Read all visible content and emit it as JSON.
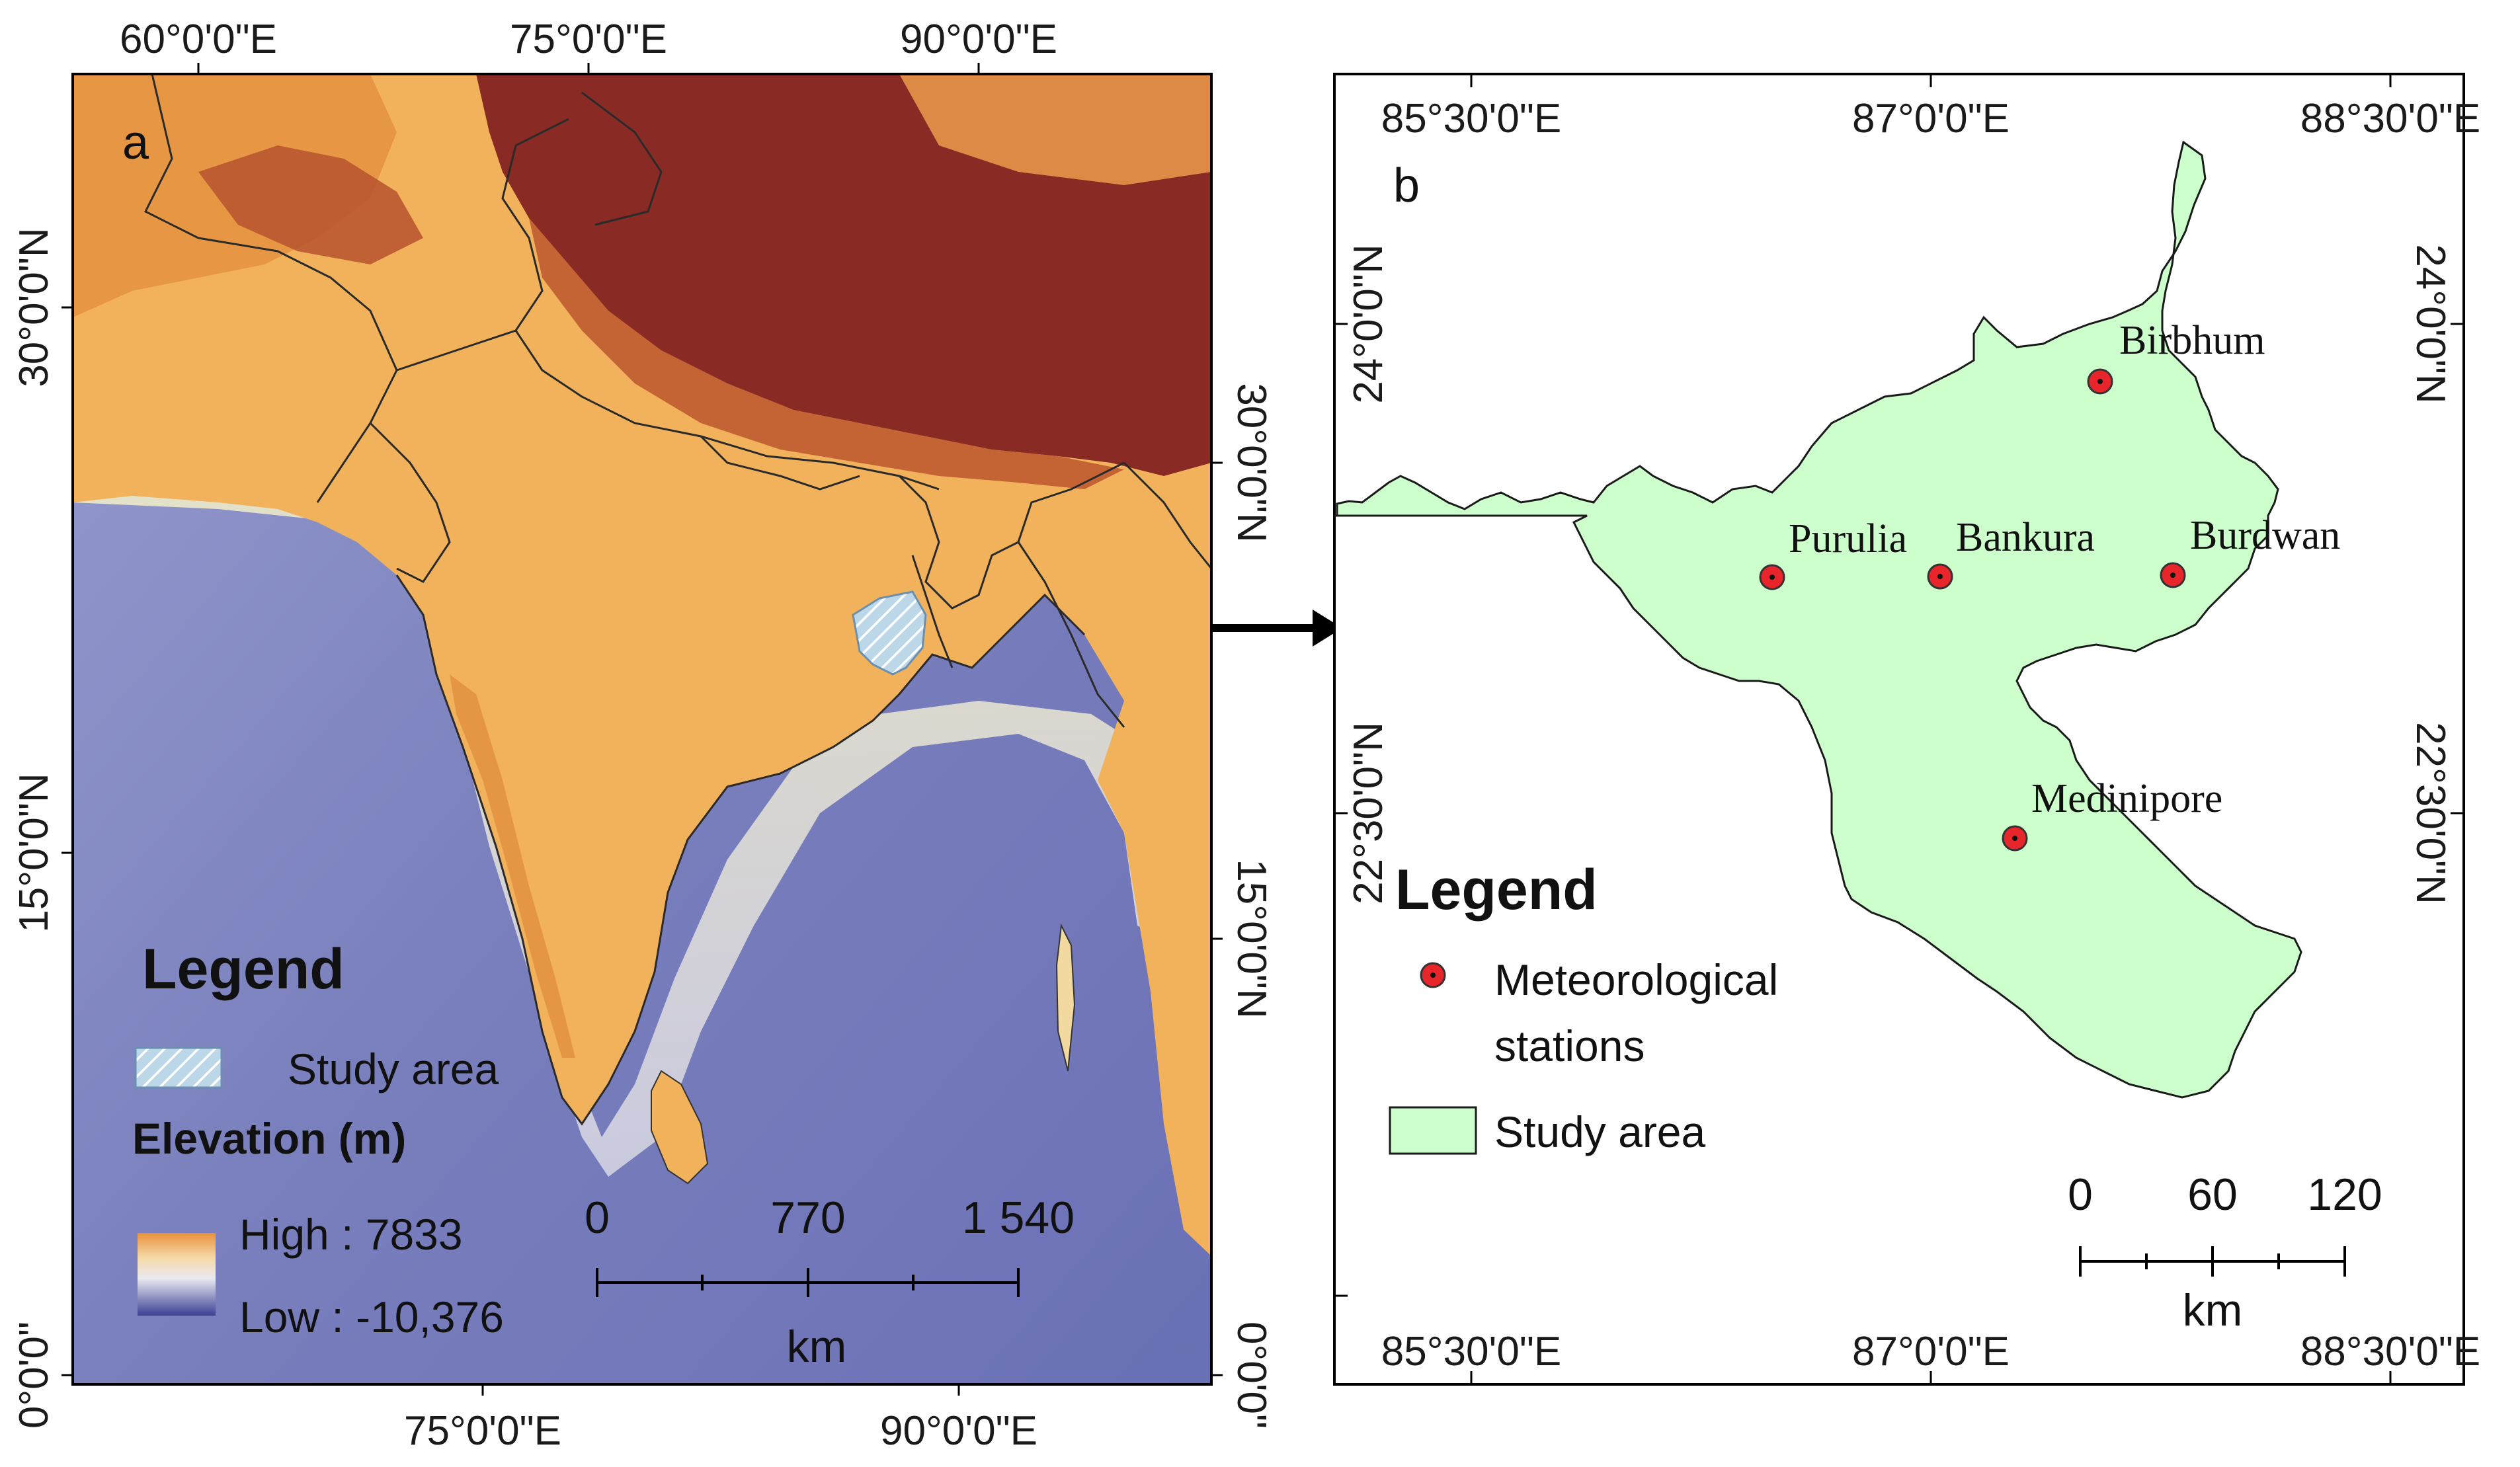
{
  "panel_a": {
    "letter": "a",
    "top_labels": [
      "60°0'0\"E",
      "75°0'0\"E",
      "90°0'0\"E"
    ],
    "bottom_labels": [
      "75°0'0\"E",
      "90°0'0\"E"
    ],
    "left_labels": [
      "30°0'0\"N",
      "15°0'0\"N",
      "0°0'0\""
    ],
    "right_labels": [
      "30°0'0\"N",
      "15°0'0\"N",
      "0°0'0\""
    ],
    "legend": {
      "title": "Legend",
      "study_area": "Study  area",
      "elevation_title": "Elevation (m)",
      "high": "High : 7833",
      "low": "Low : -10,376"
    },
    "scale": {
      "labels": [
        "0",
        "770",
        "1 540"
      ],
      "unit": "km"
    }
  },
  "panel_b": {
    "letter": "b",
    "top_labels": [
      "85°30'0\"E",
      "87°0'0\"E",
      "88°30'0\"E"
    ],
    "bottom_labels": [
      "85°30'0\"E",
      "87°0'0\"E",
      "88°30'0\"E"
    ],
    "left_labels": [
      "24°0'0\"N",
      "22°30'0\"N"
    ],
    "right_labels": [
      "24°0'0\"N",
      "22°30'0\"N"
    ],
    "stations": [
      {
        "name": "Birbhum"
      },
      {
        "name": "Purulia"
      },
      {
        "name": "Bankura"
      },
      {
        "name": "Burdwan"
      },
      {
        "name": "Medinipore"
      }
    ],
    "legend": {
      "title": "Legend",
      "stations_line1": "Meteorological",
      "stations_line2": "stations",
      "study_area": "Study  area"
    },
    "scale": {
      "labels": [
        "0",
        "60",
        "120"
      ],
      "unit": "km"
    }
  },
  "colors": {
    "highland": "#8a2a24",
    "lowland": "#f2b25c",
    "deep_ocean": "#7277b8",
    "study_area_fill": "#ccffcc",
    "station_marker": "#e8252b"
  }
}
